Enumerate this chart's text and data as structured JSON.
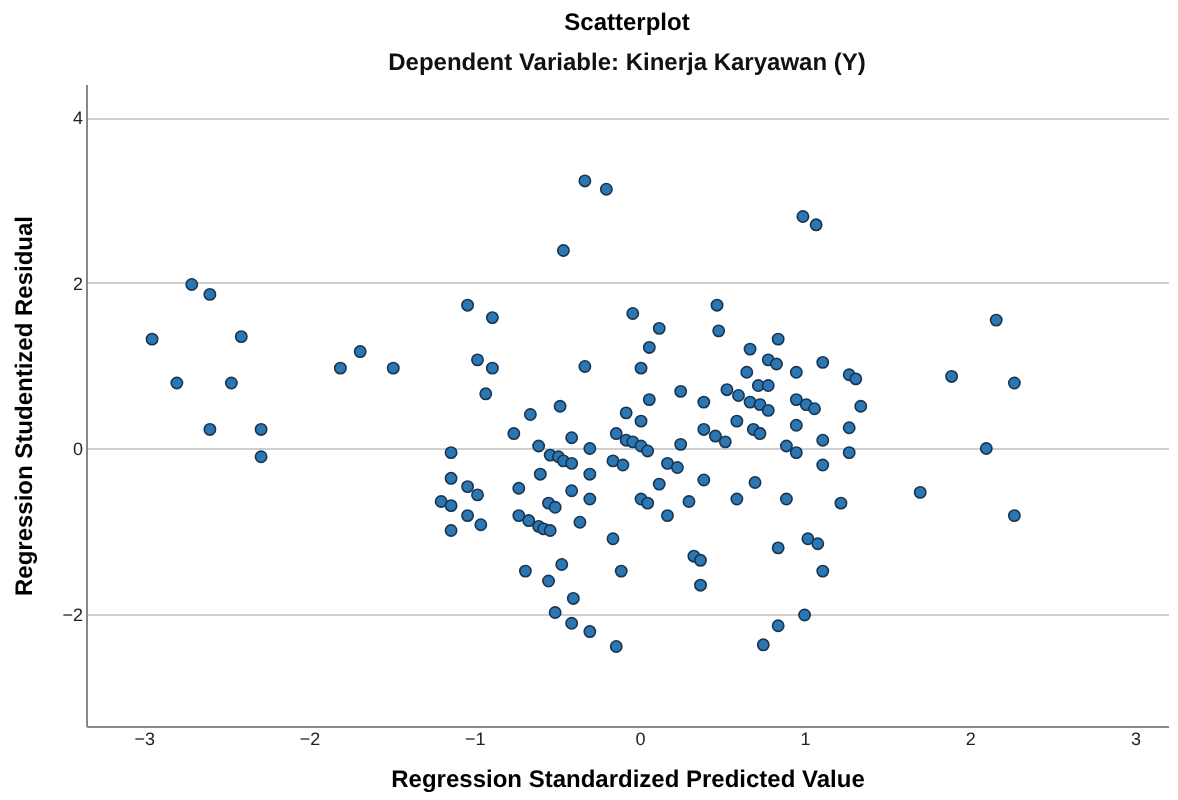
{
  "chart_data": {
    "type": "scatter",
    "title": "Scatterplot",
    "subtitle": "Dependent Variable: Kinerja Karyawan (Y)",
    "xlabel": "Regression Standardized Predicted Value",
    "ylabel": "Regression Studentized Residual",
    "x": [
      -2.95,
      -2.71,
      -2.6,
      -2.41,
      -2.8,
      -2.47,
      -2.6,
      -2.29,
      -2.29,
      -1.81,
      -1.69,
      -1.49,
      -1.04,
      -0.89,
      -0.98,
      -0.89,
      -0.93,
      -1.14,
      -1.14,
      -1.04,
      -0.98,
      -1.2,
      -1.14,
      -1.04,
      -0.96,
      -1.14,
      -0.33,
      -0.2,
      -0.46,
      -0.33,
      -0.76,
      -0.66,
      -0.48,
      -0.41,
      -0.61,
      -0.54,
      -0.49,
      -0.46,
      -0.41,
      -0.3,
      -0.6,
      -0.3,
      -0.73,
      -0.41,
      -0.55,
      -0.51,
      -0.3,
      -0.73,
      -0.67,
      -0.61,
      -0.58,
      -0.54,
      -0.36,
      -0.69,
      -0.47,
      -0.55,
      -0.4,
      -0.51,
      -0.41,
      -0.3,
      -0.14,
      -0.16,
      -0.11,
      -0.04,
      0.12,
      0.06,
      0.01,
      0.06,
      -0.08,
      0.01,
      0.25,
      0.39,
      0.39,
      -0.14,
      -0.08,
      -0.04,
      0.01,
      0.05,
      0.25,
      -0.16,
      -0.1,
      0.17,
      0.23,
      0.39,
      0.12,
      0.01,
      0.05,
      0.17,
      0.3,
      0.33,
      0.37,
      0.37,
      0.99,
      1.07,
      0.47,
      0.48,
      0.67,
      0.84,
      0.78,
      0.83,
      0.65,
      0.95,
      1.11,
      1.27,
      1.31,
      0.53,
      0.6,
      0.67,
      0.73,
      0.78,
      0.72,
      0.78,
      0.95,
      1.01,
      1.06,
      1.34,
      0.59,
      0.69,
      0.73,
      0.95,
      1.27,
      0.46,
      0.52,
      1.11,
      0.89,
      0.95,
      1.27,
      1.11,
      0.7,
      0.59,
      0.89,
      1.22,
      1.7,
      1.02,
      1.08,
      0.84,
      1.11,
      1.0,
      0.84,
      0.75,
      2.16,
      1.89,
      2.27,
      2.1,
      2.27
    ],
    "series": [
      {
        "color": "#2a77b4",
        "values": [
          1.32,
          1.98,
          1.86,
          1.35,
          0.79,
          0.79,
          0.23,
          0.23,
          -0.1,
          0.97,
          1.17,
          0.97,
          1.73,
          1.58,
          1.07,
          0.97,
          0.66,
          -0.05,
          -0.36,
          -0.46,
          -0.56,
          -0.64,
          -0.69,
          -0.81,
          -0.92,
          -0.99,
          3.23,
          3.13,
          2.39,
          0.99,
          0.18,
          0.41,
          0.51,
          0.13,
          0.03,
          -0.08,
          -0.1,
          -0.15,
          -0.18,
          0.0,
          -0.31,
          -0.31,
          -0.48,
          -0.51,
          -0.66,
          -0.71,
          -0.61,
          -0.81,
          -0.87,
          -0.94,
          -0.97,
          -0.99,
          -0.89,
          -1.48,
          -1.4,
          -1.6,
          -1.81,
          -1.98,
          -2.11,
          -2.21,
          -2.39,
          -1.09,
          -1.48,
          1.63,
          1.45,
          1.22,
          0.97,
          0.59,
          0.43,
          0.33,
          0.69,
          0.56,
          0.23,
          0.18,
          0.1,
          0.08,
          0.03,
          -0.03,
          0.05,
          -0.15,
          -0.2,
          -0.18,
          -0.23,
          -0.38,
          -0.43,
          -0.61,
          -0.66,
          -0.81,
          -0.64,
          -1.3,
          -1.35,
          -1.65,
          2.8,
          2.7,
          1.73,
          1.42,
          1.2,
          1.32,
          1.07,
          1.02,
          0.92,
          0.92,
          1.04,
          0.89,
          0.84,
          0.71,
          0.64,
          0.56,
          0.53,
          0.46,
          0.76,
          0.76,
          0.59,
          0.53,
          0.48,
          0.51,
          0.33,
          0.23,
          0.18,
          0.28,
          0.25,
          0.15,
          0.08,
          0.1,
          0.03,
          -0.05,
          -0.05,
          -0.2,
          -0.41,
          -0.61,
          -0.61,
          -0.66,
          -0.53,
          -1.09,
          -1.15,
          -1.2,
          -1.48,
          -2.01,
          -2.14,
          -2.37,
          1.55,
          0.87,
          0.79,
          0.0,
          -0.81
        ]
      }
    ],
    "xlim": [
      -3.35,
      3.2
    ],
    "ylim": [
      -3.35,
      4.4
    ],
    "xticks": [
      -3,
      -2,
      -1,
      0,
      1,
      2,
      3
    ],
    "yticks": [
      -2,
      0,
      2,
      4
    ],
    "grid": "y",
    "marker": "circle",
    "legend": false
  }
}
